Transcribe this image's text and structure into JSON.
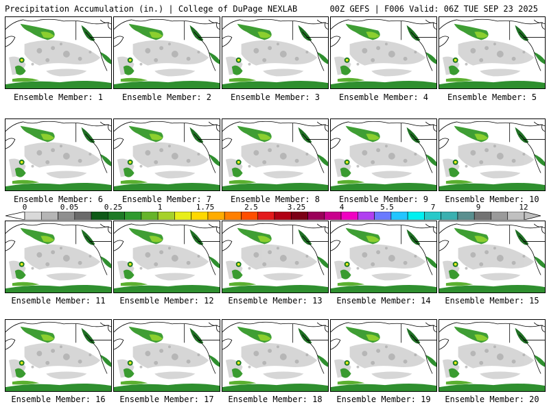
{
  "header": {
    "title_left": "Precipitation Accumulation (in.) | College of DuPage NEXLAB",
    "title_right": "00Z GEFS | F006 Valid: 06Z TUE SEP 23 2025"
  },
  "legend": {
    "tick_labels": [
      "0",
      "0.05",
      "0.25",
      "1",
      "1.75",
      "2.5",
      "3.25",
      "4",
      "5.5",
      "7",
      "9",
      "12"
    ],
    "colors": [
      "#d9d9d9",
      "#b5b5b5",
      "#8f8f8f",
      "#6a6a6a",
      "#0e5a17",
      "#1d7a25",
      "#2f9a2e",
      "#66b42a",
      "#a6d12a",
      "#e8ee19",
      "#ffd800",
      "#ffac00",
      "#ff7f00",
      "#ff4e00",
      "#e31a1c",
      "#b00014",
      "#7c0016",
      "#9a0059",
      "#c9008d",
      "#f000c2",
      "#b040f0",
      "#6a7aff",
      "#23c5ff",
      "#00f0f0",
      "#28c9c9",
      "#3ab0b0",
      "#5a8f8f",
      "#737373",
      "#9a9a9a",
      "#c0c0c0"
    ]
  },
  "members": [
    {
      "label": "Ensemble Member: 1"
    },
    {
      "label": "Ensemble Member: 2"
    },
    {
      "label": "Ensemble Member: 3"
    },
    {
      "label": "Ensemble Member: 4"
    },
    {
      "label": "Ensemble Member: 5"
    },
    {
      "label": "Ensemble Member: 6"
    },
    {
      "label": "Ensemble Member: 7"
    },
    {
      "label": "Ensemble Member: 8"
    },
    {
      "label": "Ensemble Member: 9"
    },
    {
      "label": "Ensemble Member: 10"
    },
    {
      "label": "Ensemble Member: 11"
    },
    {
      "label": "Ensemble Member: 12"
    },
    {
      "label": "Ensemble Member: 13"
    },
    {
      "label": "Ensemble Member: 14"
    },
    {
      "label": "Ensemble Member: 15"
    },
    {
      "label": "Ensemble Member: 16"
    },
    {
      "label": "Ensemble Member: 17"
    },
    {
      "label": "Ensemble Member: 18"
    },
    {
      "label": "Ensemble Member: 19"
    },
    {
      "label": "Ensemble Member: 20"
    }
  ]
}
